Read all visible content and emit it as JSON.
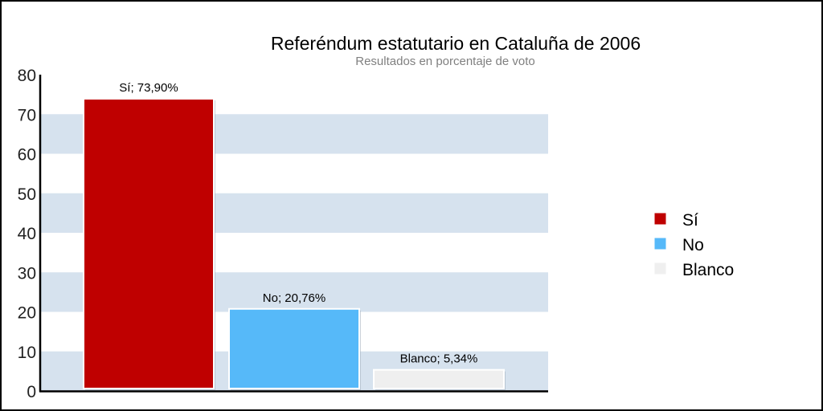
{
  "chart_data": {
    "type": "bar",
    "title": "Referéndum estatutario en Cataluña de 2006",
    "subtitle": "Resultados en porcentaje de voto",
    "categories": [
      "Sí",
      "No",
      "Blanco"
    ],
    "values": [
      73.9,
      20.76,
      5.34
    ],
    "data_labels": [
      "Sí; 73,90%",
      "No; 20,76%",
      "Blanco; 5,34%"
    ],
    "colors": [
      "#bf0000",
      "#56b9f9",
      "#efefef"
    ],
    "ylim": [
      0,
      80
    ],
    "yticks": [
      "0",
      "10",
      "20",
      "30",
      "40",
      "50",
      "60",
      "70",
      "80"
    ],
    "band_color": "#d6e2ee",
    "grid": "alternating horizontal bands",
    "legend": {
      "placement": "right",
      "entries": [
        "Sí",
        "No",
        "Blanco"
      ]
    }
  }
}
